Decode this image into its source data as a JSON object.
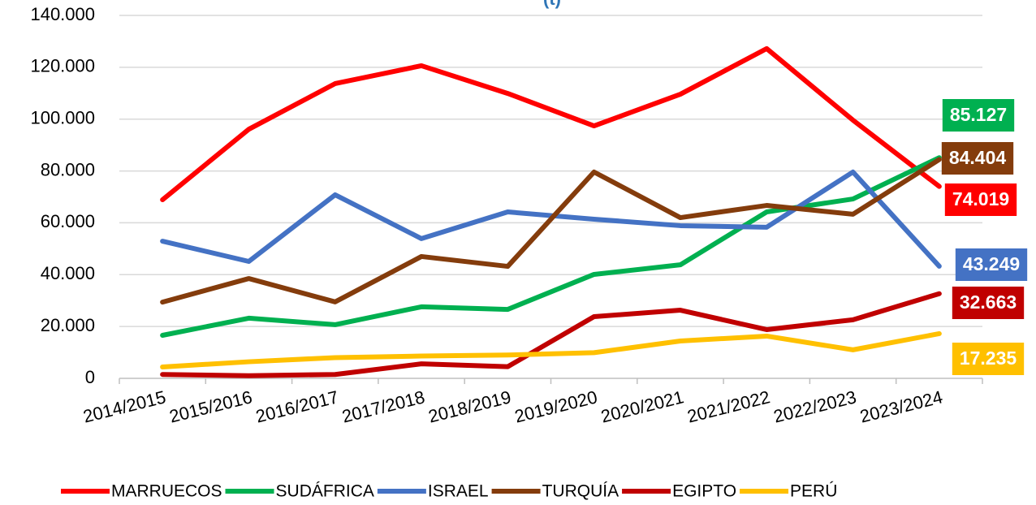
{
  "chart_data": {
    "type": "line",
    "title": "(t)",
    "categories": [
      "2014/2015",
      "2015/2016",
      "2016/2017",
      "2017/2018",
      "2018/2019",
      "2019/2020",
      "2020/2021",
      "2021/2022",
      "2022/2023",
      "2023/2024"
    ],
    "ylim": [
      0,
      140000
    ],
    "yticks": [
      0,
      {
        "value": 20000,
        "label": "20.000"
      },
      {
        "value": 40000,
        "label": "40.000"
      },
      {
        "value": 60000,
        "label": "60.000"
      },
      {
        "value": 80000,
        "label": "80.000"
      },
      {
        "value": 100000,
        "label": "100.000"
      },
      {
        "value": 120000,
        "label": "120.000"
      },
      {
        "value": 140000,
        "label": "140.000"
      }
    ],
    "grid": true,
    "legend": "bottom",
    "series": [
      {
        "name": "MARRUECOS",
        "color": "#ff0000",
        "values": [
          68900,
          96100,
          113700,
          120600,
          109900,
          97400,
          109600,
          127200,
          99600,
          74019
        ],
        "value_labels": [
          null,
          null,
          null,
          null,
          null,
          null,
          null,
          null,
          null,
          "74.019"
        ]
      },
      {
        "name": "SUDÁFRICA",
        "color": "#00b050",
        "values": [
          16600,
          23200,
          20700,
          27600,
          26600,
          40100,
          43800,
          64200,
          69200,
          85127
        ],
        "value_labels": [
          null,
          null,
          null,
          null,
          null,
          null,
          null,
          null,
          null,
          "85.127"
        ]
      },
      {
        "name": "ISRAEL",
        "color": "#4472c4",
        "values": [
          52900,
          45100,
          70800,
          53900,
          64200,
          61400,
          58900,
          58300,
          79600,
          43249
        ],
        "value_labels": [
          null,
          null,
          null,
          null,
          null,
          null,
          null,
          null,
          null,
          "43.249"
        ]
      },
      {
        "name": "TURQUÍA",
        "color": "#843c0c",
        "values": [
          29400,
          38500,
          29500,
          47000,
          43200,
          79600,
          62000,
          66700,
          63300,
          84404
        ],
        "value_labels": [
          null,
          null,
          null,
          null,
          null,
          null,
          null,
          null,
          null,
          "84.404"
        ]
      },
      {
        "name": "EGIPTO",
        "color": "#c00000",
        "values": [
          1500,
          1000,
          1500,
          5600,
          4500,
          23800,
          26300,
          18800,
          22600,
          32663
        ],
        "value_labels": [
          null,
          null,
          null,
          null,
          null,
          null,
          null,
          null,
          null,
          "32.663"
        ]
      },
      {
        "name": "PERÚ",
        "color": "#ffc000",
        "values": [
          4400,
          6400,
          8000,
          8600,
          9000,
          9900,
          14400,
          16300,
          11000,
          17235
        ],
        "value_labels": [
          null,
          null,
          null,
          null,
          null,
          null,
          null,
          null,
          null,
          "17.235"
        ]
      }
    ]
  }
}
